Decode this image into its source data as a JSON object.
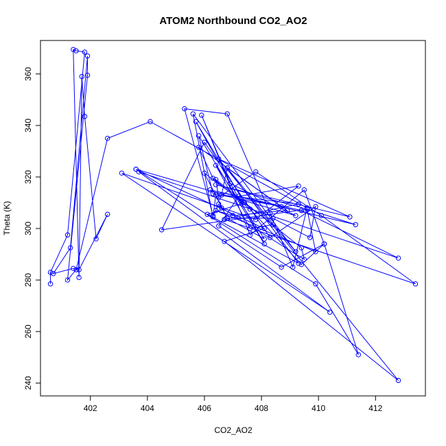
{
  "chart_data": {
    "type": "line",
    "title": "ATOM2 Northbound CO2_AO2",
    "xlabel": "CO2_AO2",
    "ylabel": "Theta (K)",
    "xlim": [
      400.25,
      413.75
    ],
    "ylim": [
      235,
      373
    ],
    "xticks": [
      402,
      404,
      406,
      408,
      410,
      412
    ],
    "yticks": [
      240,
      260,
      280,
      300,
      320,
      340,
      360
    ],
    "grid": false,
    "legend": "none",
    "color": "#0000ff",
    "series": [
      {
        "x": [
          400.6,
          400.6,
          401.2,
          401.8,
          401.5,
          401.4,
          401.6,
          401.7,
          401.8,
          402.2,
          402.6,
          401.6,
          401.4,
          400.7,
          401.3,
          401.9,
          401.9,
          401.2,
          401.5,
          402.6,
          404.1,
          409.6,
          409.1,
          408.3,
          406.8,
          405.3,
          406.3,
          406.5,
          406.6,
          409.5,
          409.4,
          406.4,
          406.5,
          407.8,
          410.1,
          413.4,
          406.7,
          409.3,
          406.6,
          406.8,
          408.7,
          406.3,
          405.8,
          408.1,
          405.7,
          407.4,
          406.1,
          409.3,
          406.8,
          409.2,
          405.6,
          406.3,
          406.4,
          406.8,
          408.1,
          406.4,
          407.6,
          408.4,
          406.0,
          406.8,
          408.4,
          409.7,
          409.9,
          408.3,
          406.0,
          404.5,
          409.6,
          409.9,
          406.4,
          407.0,
          408.9,
          405.8,
          406.3,
          407.6,
          409.4,
          410.2,
          409.5,
          407.6,
          405.9,
          406.9,
          409.2,
          403.6,
          409.9,
          411.4,
          410.2,
          408.7,
          406.5,
          407.2,
          409.3,
          407.8,
          403.1,
          410.4,
          403.7,
          412.8,
          409.4,
          406.2,
          411.3,
          409.6,
          406.4,
          411.1,
          406.5,
          412.8,
          406.7,
          408.1,
          403.6
        ],
        "y": [
          278.5,
          283.0,
          297.5,
          368.5,
          369.0,
          369.5,
          281.0,
          359.0,
          343.5,
          296.0,
          305.5,
          284.0,
          284.5,
          282.5,
          292.5,
          367.0,
          359.5,
          280.0,
          284.0,
          335.0,
          341.5,
          308.0,
          285.0,
          306.0,
          344.5,
          346.5,
          305.0,
          309.5,
          308.0,
          288.0,
          292.5,
          319.0,
          312.0,
          322.0,
          305.0,
          278.5,
          303.5,
          309.5,
          313.0,
          323.5,
          308.5,
          313.5,
          336.0,
          294.0,
          341.5,
          310.0,
          305.5,
          286.5,
          323.5,
          291.0,
          344.5,
          304.5,
          313.0,
          304.0,
          296.0,
          324.5,
          300.0,
          301.5,
          321.5,
          304.0,
          304.0,
          296.5,
          308.5,
          296.5,
          333.5,
          299.5,
          307.5,
          291.0,
          307.0,
          305.0,
          307.0,
          331.5,
          319.5,
          307.5,
          286.0,
          294.0,
          315.0,
          297.5,
          344.0,
          317.5,
          305.0,
          323.0,
          278.5,
          251.0,
          294.0,
          285.0,
          301.0,
          312.5,
          316.5,
          303.5,
          321.5,
          267.5,
          322.0,
          288.5,
          307.0,
          315.0,
          301.5,
          307.5,
          317.0,
          304.5,
          327.0,
          241.0,
          295.0,
          300.0,
          323.0
        ]
      }
    ]
  }
}
